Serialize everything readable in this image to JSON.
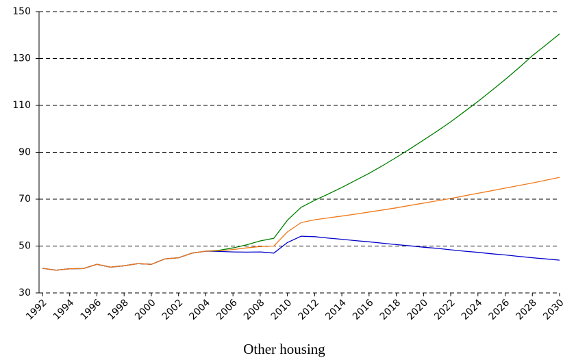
{
  "chart_data": {
    "type": "line",
    "xlabel": "Other housing",
    "x": [
      1992,
      1993,
      1994,
      1995,
      1996,
      1997,
      1998,
      1999,
      2000,
      2001,
      2002,
      2003,
      2004,
      2005,
      2006,
      2007,
      2008,
      2009,
      2010,
      2011,
      2012,
      2013,
      2014,
      2015,
      2016,
      2017,
      2018,
      2019,
      2020,
      2021,
      2022,
      2023,
      2024,
      2025,
      2026,
      2027,
      2028,
      2029,
      2030
    ],
    "series": [
      {
        "color": "#008000",
        "values": [
          40.5,
          39.7,
          40.3,
          40.4,
          42.2,
          41.0,
          41.6,
          42.5,
          42.2,
          44.5,
          45.0,
          47.0,
          47.8,
          48.2,
          49.2,
          50.5,
          52.2,
          53.3,
          61.0,
          66.5,
          69.5,
          72.2,
          75.0,
          78.0,
          81.0,
          84.3,
          87.8,
          91.4,
          95.2,
          99.0,
          103.0,
          107.3,
          111.7,
          116.3,
          121.0,
          126.0,
          131.2,
          135.8,
          140.5
        ]
      },
      {
        "color": "#0000cc",
        "values": [
          40.5,
          39.7,
          40.3,
          40.4,
          42.2,
          41.0,
          41.6,
          42.5,
          42.2,
          44.5,
          45.0,
          47.0,
          47.8,
          47.7,
          47.5,
          47.4,
          47.5,
          47.0,
          51.5,
          54.2,
          54.0,
          53.4,
          52.9,
          52.3,
          51.8,
          51.2,
          50.6,
          50.1,
          49.5,
          49.0,
          48.4,
          47.8,
          47.3,
          46.7,
          46.2,
          45.6,
          45.0,
          44.5,
          44.0
        ]
      },
      {
        "color": "#f07818",
        "values": [
          40.5,
          39.7,
          40.3,
          40.4,
          42.2,
          41.0,
          41.6,
          42.5,
          42.2,
          44.5,
          45.0,
          47.0,
          47.8,
          48.0,
          48.5,
          49.2,
          49.8,
          50.0,
          56.0,
          60.0,
          61.2,
          62.0,
          62.8,
          63.6,
          64.5,
          65.4,
          66.3,
          67.3,
          68.3,
          69.3,
          70.3,
          71.4,
          72.5,
          73.6,
          74.7,
          75.8,
          76.9,
          78.1,
          79.3
        ]
      }
    ],
    "xlim": [
      1992,
      2030
    ],
    "xticks": [
      1992,
      1994,
      1996,
      1998,
      2000,
      2002,
      2004,
      2006,
      2008,
      2010,
      2012,
      2014,
      2016,
      2018,
      2020,
      2022,
      2024,
      2026,
      2028,
      2030
    ],
    "ylim": [
      30,
      150
    ],
    "yticks": [
      30,
      50,
      70,
      90,
      110,
      130,
      150
    ],
    "grid": true
  }
}
